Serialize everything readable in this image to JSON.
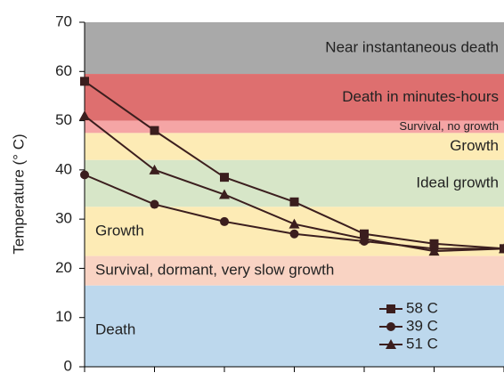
{
  "chart_data": {
    "type": "line",
    "ylabel": "Temperature (° C)",
    "categories": [
      null,
      null,
      null,
      null,
      null,
      null,
      null
    ],
    "ylim": [
      0,
      70
    ],
    "yticks": [
      0,
      10,
      20,
      30,
      40,
      50,
      60,
      70
    ],
    "bands": [
      {
        "label": "Near instantaneous death",
        "from": 59.5,
        "to": 70,
        "color": "#a9a9a9",
        "align": "right"
      },
      {
        "label": "Death in minutes-hours",
        "from": 50,
        "to": 59.5,
        "color": "#de6f6f",
        "align": "right"
      },
      {
        "label": "Survival, no growth",
        "from": 47.5,
        "to": 50,
        "color": "#f5a5a5",
        "align": "right"
      },
      {
        "label": "Growth",
        "from": 42,
        "to": 47.5,
        "color": "#fdebb5",
        "align": "right"
      },
      {
        "label": "Ideal growth",
        "from": 32.5,
        "to": 42,
        "color": "#d7e6c8",
        "align": "right"
      },
      {
        "label": "Growth",
        "from": 22.5,
        "to": 32.5,
        "color": "#fdebb5",
        "align": "left"
      },
      {
        "label": "Survival, dormant, very slow growth",
        "from": 16.5,
        "to": 22.5,
        "color": "#f9d3c3",
        "align": "left"
      },
      {
        "label": "Death",
        "from": 0,
        "to": 16.5,
        "color": "#bdd8ed",
        "align": "left"
      }
    ],
    "series": [
      {
        "name": "58 C",
        "color": "#3b1e1e",
        "marker": "square",
        "values": [
          58,
          48,
          38.5,
          33.5,
          27,
          25,
          24
        ]
      },
      {
        "name": "39 C",
        "color": "#3b1e1e",
        "marker": "circle",
        "values": [
          39,
          33,
          29.5,
          27,
          25.5,
          24,
          24
        ]
      },
      {
        "name": "51 C",
        "color": "#3b1e1e",
        "marker": "triangle",
        "values": [
          51,
          40,
          35,
          29,
          26,
          23.5,
          24
        ]
      }
    ],
    "legend": "lower right"
  }
}
